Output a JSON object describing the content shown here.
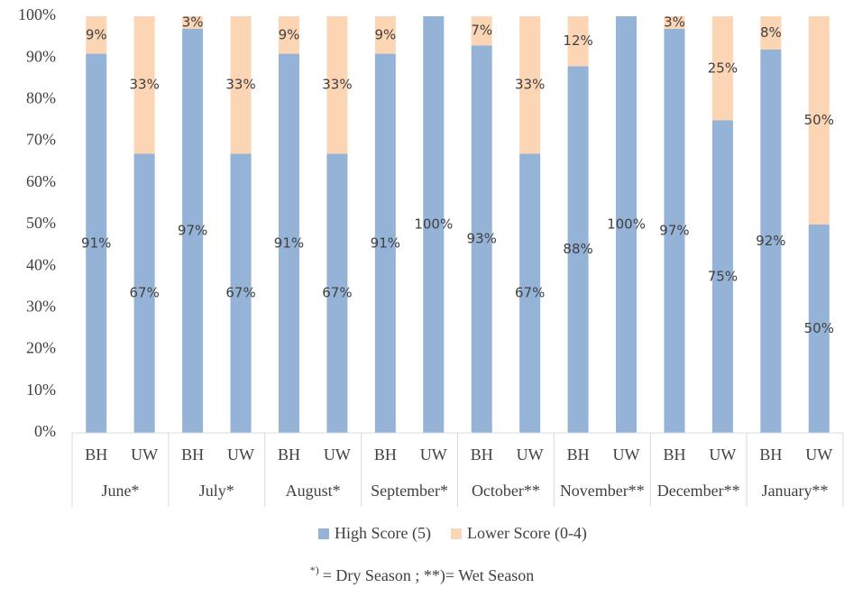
{
  "chart_data": {
    "type": "stacked_bar",
    "categories": [
      "BH",
      "UW",
      "BH",
      "UW",
      "BH",
      "UW",
      "BH",
      "UW",
      "BH",
      "UW",
      "BH",
      "UW",
      "BH",
      "UW",
      "BH",
      "UW"
    ],
    "groups": [
      "June*",
      "July*",
      "August*",
      "September*",
      "October**",
      "November**",
      "December**",
      "January**"
    ],
    "series": [
      {
        "name": "High Score (5)",
        "color": "#95b3d7",
        "values": [
          91,
          67,
          97,
          67,
          91,
          67,
          91,
          100,
          93,
          67,
          88,
          100,
          97,
          75,
          92,
          50
        ],
        "value_labels": [
          "91%",
          "67%",
          "97%",
          "67%",
          "91%",
          "67%",
          "91%",
          "100%",
          "93%",
          "67%",
          "88%",
          "100%",
          "97%",
          "75%",
          "92%",
          "50%"
        ]
      },
      {
        "name": "Lower Score (0-4)",
        "color": "#fcd5b5",
        "values": [
          9,
          33,
          3,
          33,
          9,
          33,
          9,
          0,
          7,
          33,
          12,
          0,
          3,
          25,
          8,
          50
        ],
        "value_labels": [
          "9%",
          "33%",
          "3%",
          "33%",
          "9%",
          "33%",
          "9%",
          null,
          "7%",
          "33%",
          "12%",
          null,
          "3%",
          "25%",
          "8%",
          "50%"
        ]
      }
    ],
    "ylim": [
      0,
      100
    ],
    "yticks": [
      {
        "value": 0,
        "label": "0%"
      },
      {
        "value": 10,
        "label": "10%"
      },
      {
        "value": 20,
        "label": "20%"
      },
      {
        "value": 30,
        "label": "30%"
      },
      {
        "value": 40,
        "label": "40%"
      },
      {
        "value": 50,
        "label": "50%"
      },
      {
        "value": 60,
        "label": "60%"
      },
      {
        "value": 70,
        "label": "70%"
      },
      {
        "value": 80,
        "label": "80%"
      },
      {
        "value": 90,
        "label": "90%"
      },
      {
        "value": 100,
        "label": "100%"
      }
    ],
    "grid": false,
    "legend": "bottom",
    "footnote": {
      "superscript": "*)",
      "text": "= Dry Season ; **)= Wet Season"
    }
  }
}
